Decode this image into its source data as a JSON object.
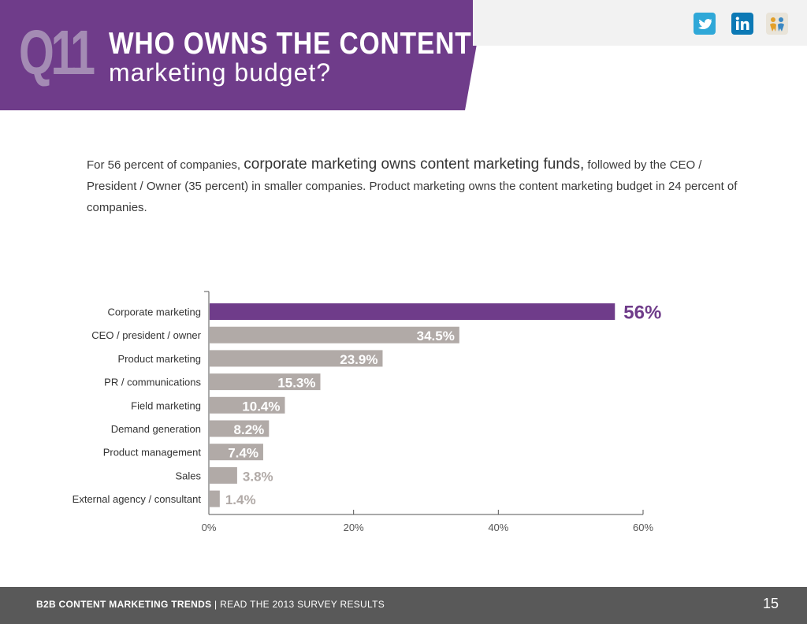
{
  "header": {
    "number": "Q11",
    "title_line1": "WHO OWNS THE CONTENT",
    "title_line2": "marketing budget?"
  },
  "social": {
    "icons": [
      "twitter-icon",
      "linkedin-icon",
      "share-icon"
    ],
    "colors": {
      "twitter": "#2fa8d8",
      "linkedin": "#0c79b5"
    }
  },
  "intro": {
    "part1": "For 56 percent of companies, ",
    "highlight": "corporate marketing owns content marketing funds,",
    "part2": " followed by the CEO / President / Owner (35 percent) in smaller companies. Product marketing owns the content marketing budget in 24 percent of companies."
  },
  "chart_data": {
    "type": "bar",
    "orientation": "horizontal",
    "categories": [
      "Corporate marketing",
      "CEO / president / owner",
      "Product marketing",
      "PR / communications",
      "Field marketing",
      "Demand generation",
      "Product management",
      "Sales",
      "External agency / consultant"
    ],
    "values": [
      56,
      34.5,
      23.9,
      15.3,
      10.4,
      8.2,
      7.4,
      3.8,
      1.4
    ],
    "labels": [
      "56%",
      "34.5%",
      "23.9%",
      "15.3%",
      "10.4%",
      "8.2%",
      "7.4%",
      "3.8%",
      "1.4%"
    ],
    "xlim": [
      0,
      60
    ],
    "xticks": [
      0,
      20,
      40,
      60
    ],
    "xtick_labels": [
      "0%",
      "20%",
      "40%",
      "60%"
    ],
    "highlight_index": 0,
    "colors": {
      "highlight": "#6f3c8a",
      "default": "#b1aaa7",
      "label_outside": "#b1aaa7"
    }
  },
  "footer": {
    "left_bold": "B2B CONTENT MARKETING TRENDS",
    "separator": "|",
    "left_rest": "READ THE 2013 SURVEY RESULTS",
    "page": "15"
  }
}
